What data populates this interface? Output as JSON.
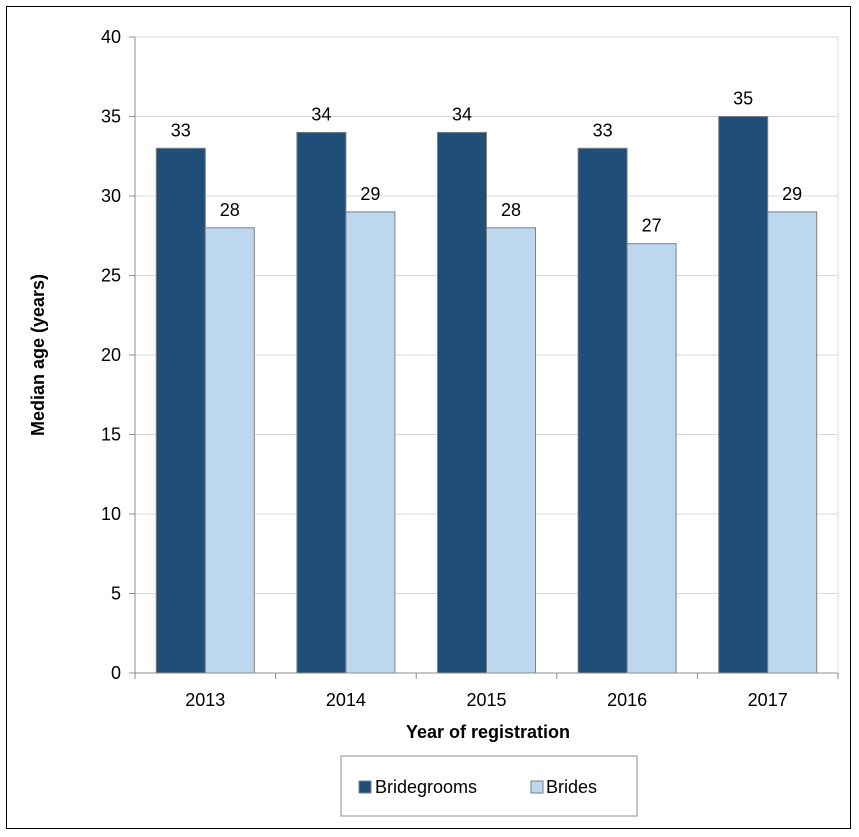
{
  "chart_data": {
    "type": "bar",
    "categories": [
      "2013",
      "2014",
      "2015",
      "2016",
      "2017"
    ],
    "series": [
      {
        "name": "Bridegrooms",
        "values": [
          33,
          34,
          34,
          33,
          35
        ],
        "color": "#1f4e79"
      },
      {
        "name": "Brides",
        "values": [
          28,
          29,
          28,
          27,
          29
        ],
        "color": "#bdd7ee"
      }
    ],
    "xlabel": "Year of registration",
    "ylabel": "Median age (years)",
    "ylim": [
      0,
      40
    ],
    "yticks": [
      0,
      5,
      10,
      15,
      20,
      25,
      30,
      35,
      40
    ],
    "grid": true,
    "legend_position": "bottom-center",
    "data_labels": true
  },
  "colors": {
    "gridline": "#d9d9d9",
    "axis": "#8c8c8c",
    "bar_border": "#7f7f7f"
  }
}
